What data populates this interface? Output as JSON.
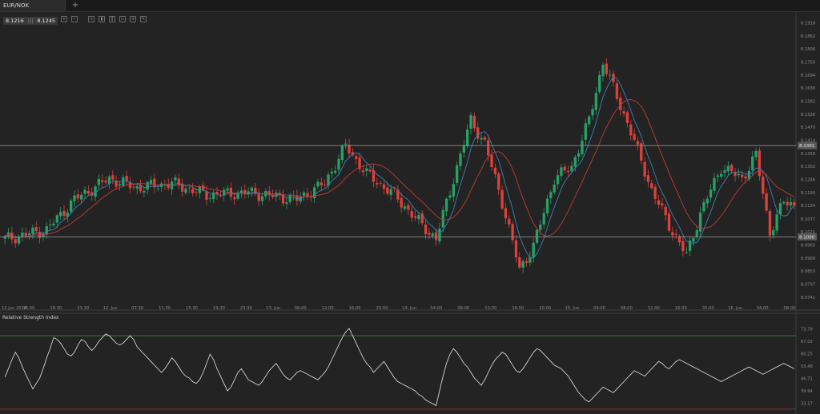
{
  "tab": {
    "title": "EUR/NOK",
    "add": "+"
  },
  "quote": {
    "bid": "8.1216",
    "separator": "|||",
    "ask": "8.1245"
  },
  "toolbar": {
    "icons": [
      "zoom-in-icon",
      "zoom-out-icon",
      "line-chart-icon",
      "candlestick-icon",
      "bar-chart-icon",
      "drawing-icon",
      "crosshair-icon",
      "settings-icon"
    ]
  },
  "indicator": {
    "title": "Relative Strength Index"
  },
  "colors": {
    "up": "#26a269",
    "down": "#e0403a",
    "ma_fast": "#3d7fb8",
    "ma_slow": "#c23b3b",
    "rsi": "#e6e6e6",
    "level_high": "#3a8a3a",
    "level_low": "#b03030",
    "hline": "#8e8e8e"
  },
  "chart_data": {
    "type": "candlestick",
    "symbol": "EUR/NOK",
    "y_ticks": [
      "8.1918",
      "8.1862",
      "8.1806",
      "8.1750",
      "8.1694",
      "8.1638",
      "8.1582",
      "8.1526",
      "8.1470",
      "8.1414",
      "8.1358",
      "8.1302",
      "8.1246",
      "8.1190",
      "8.1134",
      "8.1077",
      "8.1021",
      "8.0965",
      "8.0909",
      "8.0853",
      "8.0797",
      "8.0741"
    ],
    "ylim": [
      8.072,
      8.194
    ],
    "x_labels": [
      "11 Jun 2014",
      "15:30",
      "19:30",
      "23:30",
      "12. Jun",
      "07:30",
      "11:30",
      "15:30",
      "19:30",
      "23:30",
      "13. Jun",
      "08:00",
      "12:00",
      "16:00",
      "20:00",
      "14. Jun",
      "04:00",
      "08:00",
      "12:00",
      "16:00",
      "20:00",
      "15. Jun",
      "04:00",
      "08:00",
      "12:00",
      "16:00",
      "20:00",
      "16. Jun",
      "04:00",
      "08:00"
    ],
    "hlines": [
      {
        "value": 8.1391,
        "label": "8.1391"
      },
      {
        "value": 8.1,
        "label": "8.1000"
      }
    ],
    "rsi": {
      "y_ticks": [
        "73.79",
        "67.02",
        "60.25",
        "53.48",
        "46.71",
        "39.94",
        "33.17"
      ],
      "ylim": [
        30.0,
        77.0
      ],
      "levels": [
        70,
        30
      ],
      "values": [
        47.5,
        52,
        57,
        61,
        58,
        53,
        49,
        45,
        41,
        44,
        47,
        52,
        58,
        63,
        69,
        68,
        66,
        63,
        60,
        59,
        61,
        65,
        68,
        67,
        64,
        62,
        64,
        67,
        69,
        71,
        70,
        68,
        66,
        65,
        66,
        68,
        70,
        68,
        64,
        62,
        60,
        58,
        56,
        54,
        52,
        50,
        52,
        55,
        58,
        56,
        53,
        50,
        48,
        47,
        45,
        44,
        46,
        50,
        55,
        60,
        57,
        52,
        48,
        44,
        40,
        42,
        46,
        50,
        52,
        49,
        46,
        45,
        44,
        43,
        45,
        48,
        51,
        53,
        55,
        52,
        49,
        47,
        46,
        48,
        50,
        51,
        50,
        49,
        48,
        47,
        46,
        48,
        50,
        53,
        57,
        61,
        65,
        69,
        72,
        74,
        70,
        66,
        62,
        58,
        55,
        53,
        50,
        52,
        54,
        56,
        53,
        50,
        47,
        45,
        44,
        43,
        42,
        41,
        40,
        38,
        37,
        35,
        34,
        33,
        32,
        40,
        48,
        55,
        60,
        63,
        61,
        58,
        55,
        53,
        50,
        47,
        45,
        43,
        46,
        50,
        54,
        57,
        59,
        61,
        60,
        57,
        54,
        51,
        50,
        52,
        55,
        58,
        61,
        63,
        62,
        60,
        58,
        56,
        54,
        53,
        52,
        50,
        48,
        45,
        42,
        39,
        37,
        35,
        34,
        36,
        38,
        40,
        42,
        41,
        40,
        39,
        41,
        43,
        45,
        47,
        49,
        51,
        50,
        49,
        48,
        50,
        52,
        54,
        56,
        55,
        53,
        52,
        54,
        56,
        57,
        56,
        55,
        54,
        53,
        52,
        51,
        50,
        49,
        48,
        47,
        46,
        45,
        46,
        47,
        48,
        49,
        50,
        51,
        52,
        53,
        52,
        51,
        50,
        49,
        50,
        51,
        52,
        53,
        54,
        55,
        54,
        53,
        52
      ]
    }
  }
}
